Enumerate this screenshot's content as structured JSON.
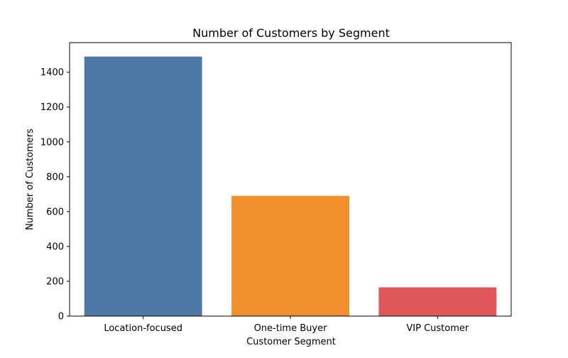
{
  "chart_data": {
    "type": "bar",
    "title": "Number of Customers by Segment",
    "xlabel": "Customer Segment",
    "ylabel": "Number of Customers",
    "categories": [
      "Location-focused",
      "One-time Buyer",
      "VIP Customer"
    ],
    "values": [
      1490,
      690,
      165
    ],
    "colors": [
      "#4e79a7",
      "#f28e2b",
      "#e15759"
    ],
    "ylim": [
      0,
      1570
    ],
    "yticks": [
      0,
      200,
      400,
      600,
      800,
      1000,
      1200,
      1400
    ],
    "grid": false,
    "legend": "none"
  }
}
